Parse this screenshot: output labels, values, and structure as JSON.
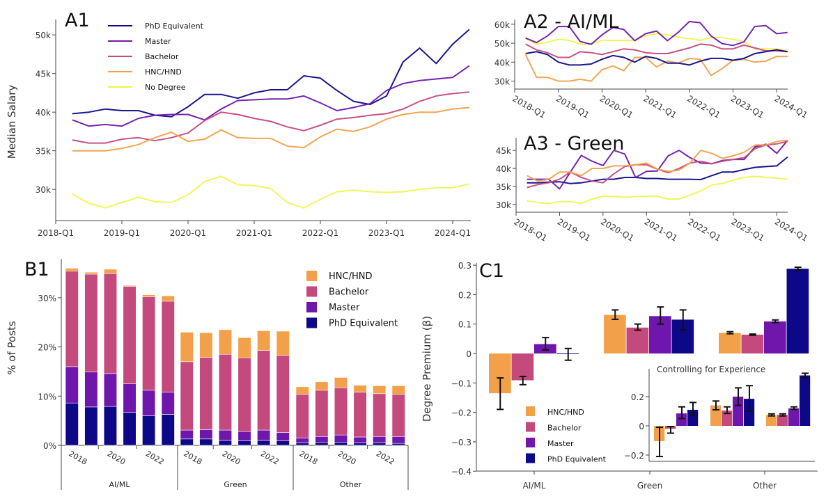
{
  "colors": {
    "PhD Equivalent": "#0d0887",
    "Master": "#6f17ad",
    "Bachelor": "#c4497c",
    "HNC/HND": "#f2a04a",
    "No Degree": "#eef53a"
  },
  "chart_data": [
    {
      "type": "line",
      "title": "A1",
      "ylabel": "Median Salary",
      "ylim": [
        26500,
        52000
      ],
      "yticks": [
        30000,
        35000,
        40000,
        45000,
        50000
      ],
      "ytick_labels": [
        "30k",
        "35k",
        "40k",
        "45k",
        "50k"
      ],
      "xtick_labels": [
        "2018-Q1",
        "2019-Q1",
        "2020-Q1",
        "2021-Q1",
        "2022-Q1",
        "2023-Q1",
        "2024-Q1"
      ],
      "legend": "top-left",
      "x": [
        "2018-Q2",
        "2018-Q3",
        "2018-Q4",
        "2019-Q1",
        "2019-Q2",
        "2019-Q3",
        "2019-Q4",
        "2020-Q1",
        "2020-Q2",
        "2020-Q3",
        "2020-Q4",
        "2021-Q1",
        "2021-Q2",
        "2021-Q3",
        "2021-Q4",
        "2022-Q1",
        "2022-Q2",
        "2022-Q3",
        "2022-Q4",
        "2023-Q1",
        "2023-Q2",
        "2023-Q3",
        "2023-Q4",
        "2024-Q1",
        "2024-Q2"
      ],
      "series": [
        {
          "name": "PhD Equivalent",
          "values": [
            39800,
            40000,
            40400,
            40200,
            40200,
            39600,
            39400,
            40700,
            42300,
            42300,
            41800,
            42500,
            42900,
            42900,
            44700,
            44400,
            42800,
            41400,
            41000,
            42100,
            46500,
            48300,
            46300,
            48800,
            50700
          ]
        },
        {
          "name": "Master",
          "values": [
            39000,
            38200,
            38400,
            38200,
            39200,
            39600,
            39700,
            39700,
            39000,
            40400,
            41500,
            41600,
            41700,
            41700,
            42100,
            41200,
            40200,
            40600,
            41100,
            42800,
            43700,
            44100,
            44300,
            44500,
            46000
          ]
        },
        {
          "name": "Bachelor",
          "values": [
            36400,
            36000,
            36000,
            36500,
            36700,
            36300,
            36700,
            37300,
            38900,
            40000,
            39700,
            39200,
            38800,
            38100,
            37600,
            38300,
            39100,
            39300,
            39600,
            39800,
            40400,
            41400,
            42100,
            42400,
            42600
          ]
        },
        {
          "name": "HNC/HND",
          "values": [
            35000,
            35000,
            35000,
            35300,
            35800,
            36700,
            37400,
            36200,
            36500,
            37700,
            36700,
            36600,
            36600,
            35600,
            35400,
            36800,
            37800,
            37500,
            38100,
            39100,
            39700,
            40000,
            40000,
            40400,
            40600
          ]
        },
        {
          "name": "No Degree",
          "values": [
            29400,
            28200,
            27600,
            28300,
            29000,
            28400,
            28300,
            29300,
            31000,
            31700,
            30600,
            30500,
            30100,
            28300,
            27600,
            28700,
            29700,
            29900,
            29700,
            29600,
            29700,
            30000,
            30200,
            30200,
            30700
          ]
        }
      ]
    },
    {
      "type": "line",
      "title": "A2 - AI/ML",
      "ylim": [
        28000,
        62500
      ],
      "yticks": [
        30000,
        40000,
        50000,
        60000
      ],
      "ytick_labels": [
        "30k",
        "40k",
        "50k",
        "60k"
      ],
      "xtick_labels": [
        "2018-Q1",
        "2019-Q1",
        "2020-Q1",
        "2021-Q1",
        "2022-Q1",
        "2023-Q1",
        "2024-Q1"
      ],
      "x": [
        "2018-Q2",
        "2018-Q3",
        "2018-Q4",
        "2019-Q1",
        "2019-Q2",
        "2019-Q3",
        "2019-Q4",
        "2020-Q1",
        "2020-Q2",
        "2020-Q3",
        "2020-Q4",
        "2021-Q1",
        "2021-Q2",
        "2021-Q3",
        "2021-Q4",
        "2022-Q1",
        "2022-Q2",
        "2022-Q3",
        "2022-Q4",
        "2023-Q1",
        "2023-Q2",
        "2023-Q3",
        "2023-Q4",
        "2024-Q1",
        "2024-Q2"
      ],
      "series": [
        {
          "name": "No Degree",
          "values": [
            52500,
            49500,
            50500,
            52000,
            51500,
            49500,
            49500,
            51500,
            51500,
            51500,
            51500,
            54000,
            55000,
            54500,
            53000,
            52500,
            51500,
            53000,
            53000,
            52000,
            51000,
            47000,
            47000,
            47000,
            46000
          ]
        },
        {
          "name": "HNC/HND",
          "values": [
            44000,
            32000,
            32000,
            30000,
            30000,
            31000,
            30000,
            36000,
            38000,
            35500,
            42500,
            42500,
            37500,
            40500,
            39500,
            42000,
            41500,
            33000,
            36500,
            41000,
            41500,
            40000,
            40500,
            43000,
            43000
          ]
        },
        {
          "name": "Bachelor",
          "values": [
            49500,
            46500,
            45000,
            42500,
            42500,
            45500,
            45000,
            44000,
            45500,
            47000,
            46500,
            45000,
            44500,
            44500,
            46000,
            47500,
            49500,
            49000,
            47000,
            47000,
            49000,
            47500,
            46000,
            46000,
            45500
          ]
        },
        {
          "name": "PhD Equivalent",
          "values": [
            44500,
            45500,
            44000,
            40000,
            38500,
            38500,
            39000,
            41500,
            43500,
            42500,
            40000,
            43000,
            42000,
            39500,
            39500,
            38500,
            40500,
            42000,
            42000,
            41000,
            42000,
            44500,
            45500,
            46500,
            45500
          ]
        },
        {
          "name": "Master",
          "values": [
            52700,
            50300,
            53800,
            58800,
            58800,
            50900,
            49400,
            54400,
            58300,
            57200,
            51300,
            55000,
            56400,
            51300,
            55800,
            61400,
            60800,
            53800,
            49800,
            48800,
            50700,
            58800,
            59300,
            55000,
            55600
          ]
        }
      ]
    },
    {
      "type": "line",
      "title": "A3 - Green",
      "ylim": [
        29000,
        48500
      ],
      "yticks": [
        30000,
        35000,
        40000,
        45000
      ],
      "ytick_labels": [
        "30k",
        "35k",
        "40k",
        "45k"
      ],
      "xtick_labels": [
        "2018-Q1",
        "2019-Q1",
        "2020-Q1",
        "2021-Q1",
        "2022-Q1",
        "2023-Q1",
        "2024-Q1"
      ],
      "x": [
        "2018-Q2",
        "2018-Q3",
        "2018-Q4",
        "2019-Q1",
        "2019-Q2",
        "2019-Q3",
        "2019-Q4",
        "2020-Q1",
        "2020-Q2",
        "2020-Q3",
        "2020-Q4",
        "2021-Q1",
        "2021-Q2",
        "2021-Q3",
        "2021-Q4",
        "2022-Q1",
        "2022-Q2",
        "2022-Q3",
        "2022-Q4",
        "2023-Q1",
        "2023-Q2",
        "2023-Q3",
        "2023-Q4",
        "2024-Q1",
        "2024-Q2"
      ],
      "series": [
        {
          "name": "No Degree",
          "values": [
            31000,
            30500,
            30300,
            30800,
            30800,
            30300,
            31500,
            32300,
            32200,
            32000,
            32200,
            32300,
            32300,
            31500,
            31500,
            32600,
            33800,
            35400,
            35800,
            36800,
            37500,
            37800,
            37500,
            37300,
            37000
          ]
        },
        {
          "name": "PhD Equivalent",
          "values": [
            36000,
            36000,
            36200,
            36300,
            35800,
            36000,
            36500,
            37000,
            37000,
            37500,
            37500,
            37200,
            37200,
            37000,
            37000,
            37000,
            36900,
            38000,
            39000,
            39000,
            39700,
            40300,
            40500,
            40700,
            43200
          ]
        },
        {
          "name": "Master",
          "values": [
            37000,
            37000,
            37000,
            34300,
            39000,
            43600,
            42000,
            40800,
            45000,
            44000,
            37500,
            39200,
            39300,
            43500,
            45000,
            43000,
            41500,
            41300,
            42200,
            42500,
            42500,
            46000,
            46700,
            44200,
            47800
          ]
        },
        {
          "name": "Bachelor",
          "values": [
            34700,
            35500,
            36000,
            37000,
            39000,
            37500,
            36500,
            36000,
            38500,
            40500,
            41000,
            41000,
            39800,
            38800,
            40000,
            41500,
            42000,
            41300,
            42000,
            42500,
            43000,
            45500,
            46500,
            46800,
            47500
          ]
        },
        {
          "name": "HNC/HND",
          "values": [
            38000,
            36500,
            37000,
            39000,
            39000,
            38000,
            40000,
            40000,
            40700,
            40700,
            41000,
            41500,
            39800,
            39200,
            39500,
            41500,
            45000,
            44200,
            42800,
            43500,
            44500,
            46500,
            46500,
            47500,
            47800
          ]
        }
      ]
    },
    {
      "type": "bar",
      "stacked": true,
      "title": "B1",
      "ylabel": "% of Posts",
      "ylim": [
        0,
        37
      ],
      "yticks": [
        0,
        10,
        20,
        30
      ],
      "ytick_labels": [
        "0%",
        "10%",
        "20%",
        "30%"
      ],
      "groups": [
        "AI/ML",
        "Green",
        "Other"
      ],
      "categories": [
        "2018",
        "2019",
        "2020",
        "2021",
        "2022",
        "2023"
      ],
      "year_tick_labels": [
        "2018",
        "2020",
        "2022"
      ],
      "legend": "top-right",
      "series": [
        {
          "name": "HNC/HND",
          "values": [
            [
              0.6,
              0.4,
              0.9,
              0.2,
              0.4,
              1.1
            ],
            [
              6.0,
              5.0,
              5.0,
              4.1,
              4.0,
              4.9
            ],
            [
              1.5,
              1.7,
              2.1,
              1.4,
              1.6,
              1.7
            ]
          ]
        },
        {
          "name": "Bachelor",
          "values": [
            [
              19.4,
              19.9,
              20.3,
              19.8,
              19.0,
              18.5
            ],
            [
              13.9,
              14.7,
              15.4,
              15.0,
              16.2,
              15.7
            ],
            [
              8.9,
              9.4,
              9.6,
              9.1,
              8.7,
              8.6
            ]
          ]
        },
        {
          "name": "Master",
          "values": [
            [
              7.4,
              7.1,
              6.7,
              5.8,
              5.2,
              4.5
            ],
            [
              1.8,
              1.9,
              2.1,
              1.9,
              2.1,
              1.7
            ],
            [
              1.0,
              1.2,
              1.5,
              1.2,
              1.3,
              1.4
            ]
          ]
        },
        {
          "name": "PhD Equivalent",
          "values": [
            [
              8.6,
              7.8,
              7.9,
              6.7,
              6.0,
              6.3
            ],
            [
              1.3,
              1.3,
              1.0,
              0.9,
              1.0,
              0.9
            ],
            [
              0.5,
              0.6,
              0.6,
              0.5,
              0.5,
              0.4
            ]
          ]
        }
      ]
    },
    {
      "type": "bar",
      "title": "C1",
      "ylabel": "Degree Premium (β)",
      "ylim": [
        -0.4,
        0.3
      ],
      "yticks": [
        -0.4,
        -0.3,
        -0.2,
        -0.1,
        0,
        0.1,
        0.2,
        0.3
      ],
      "ytick_labels": [
        "−0.4",
        "−0.3",
        "−0.2",
        "−0.1",
        "0",
        "0.1",
        "0.2",
        "0.3"
      ],
      "categories": [
        "AI/ML",
        "Green",
        "Other"
      ],
      "legend": "bottom-left",
      "series": [
        {
          "name": "HNC/HND",
          "values": [
            -0.135,
            0.131,
            0.07
          ],
          "ci": [
            [
              -0.19,
              -0.083
            ],
            [
              0.116,
              0.148
            ],
            [
              0.067,
              0.074
            ]
          ]
        },
        {
          "name": "Bachelor",
          "values": [
            -0.091,
            0.088,
            0.064
          ],
          "ci": [
            [
              -0.106,
              -0.078
            ],
            [
              0.079,
              0.1
            ],
            [
              0.062,
              0.066
            ]
          ]
        },
        {
          "name": "Master",
          "values": [
            0.032,
            0.127,
            0.109
          ],
          "ci": [
            [
              0.012,
              0.054
            ],
            [
              0.1,
              0.158
            ],
            [
              0.105,
              0.114
            ]
          ]
        },
        {
          "name": "PhD Equivalent",
          "values": [
            -0.002,
            0.115,
            0.288
          ],
          "ci": [
            [
              -0.023,
              0.017
            ],
            [
              0.08,
              0.148
            ],
            [
              0.283,
              0.293
            ]
          ]
        }
      ],
      "inset": {
        "title": "Controlling for Experience",
        "ylim": [
          -0.25,
          0.39
        ],
        "yticks": [
          -0.2,
          0,
          0.2
        ],
        "ytick_labels": [
          "−0.2",
          "0",
          "0.2"
        ],
        "series": [
          {
            "name": "HNC/HND",
            "values": [
              -0.105,
              0.14,
              0.075
            ],
            "ci": [
              [
                -0.21,
                -0.01
              ],
              [
                0.11,
                0.17
              ],
              [
                0.068,
                0.082
              ]
            ]
          },
          {
            "name": "Bachelor",
            "values": [
              -0.02,
              0.105,
              0.075
            ],
            "ci": [
              [
                -0.05,
                -0.005
              ],
              [
                0.085,
                0.13
              ],
              [
                0.068,
                0.082
              ]
            ]
          },
          {
            "name": "Master",
            "values": [
              0.085,
              0.2,
              0.12
            ],
            "ci": [
              [
                0.05,
                0.13
              ],
              [
                0.14,
                0.26
              ],
              [
                0.113,
                0.13
              ]
            ]
          },
          {
            "name": "PhD Equivalent",
            "values": [
              0.11,
              0.185,
              0.345
            ],
            "ci": [
              [
                0.07,
                0.16
              ],
              [
                0.1,
                0.275
              ],
              [
                0.33,
                0.36
              ]
            ]
          }
        ]
      }
    }
  ]
}
